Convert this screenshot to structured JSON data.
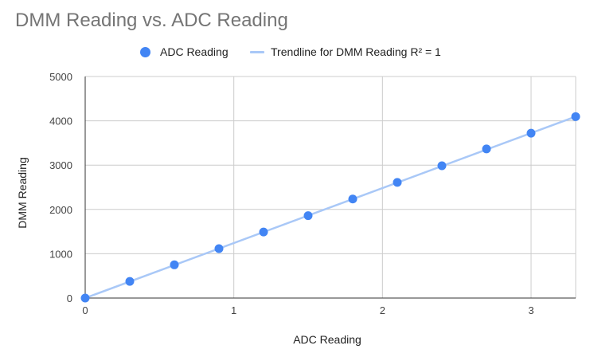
{
  "chart_data": {
    "type": "scatter",
    "title": "DMM Reading vs. ADC Reading",
    "xlabel": "ADC Reading",
    "ylabel": "DMM Reading",
    "xlim": [
      0,
      3.3
    ],
    "ylim": [
      0,
      5000
    ],
    "x_ticks": [
      "0",
      "1",
      "2",
      "3"
    ],
    "y_ticks": [
      "0",
      "1000",
      "2000",
      "3000",
      "4000",
      "5000"
    ],
    "grid": true,
    "legend_position": "top",
    "series": [
      {
        "name": "ADC Reading",
        "color": "#4285f4",
        "x": [
          0,
          0.3,
          0.6,
          0.9,
          1.2,
          1.5,
          1.8,
          2.1,
          2.4,
          2.7,
          3.0,
          3.3
        ],
        "y": [
          0,
          375,
          750,
          1115,
          1490,
          1860,
          2235,
          2610,
          2985,
          3365,
          3720,
          4095
        ]
      }
    ],
    "trendline": {
      "label": "Trendline for DMM Reading R² = 1",
      "color": "#a9c8f7",
      "slope": 1241,
      "intercept": 0
    }
  }
}
